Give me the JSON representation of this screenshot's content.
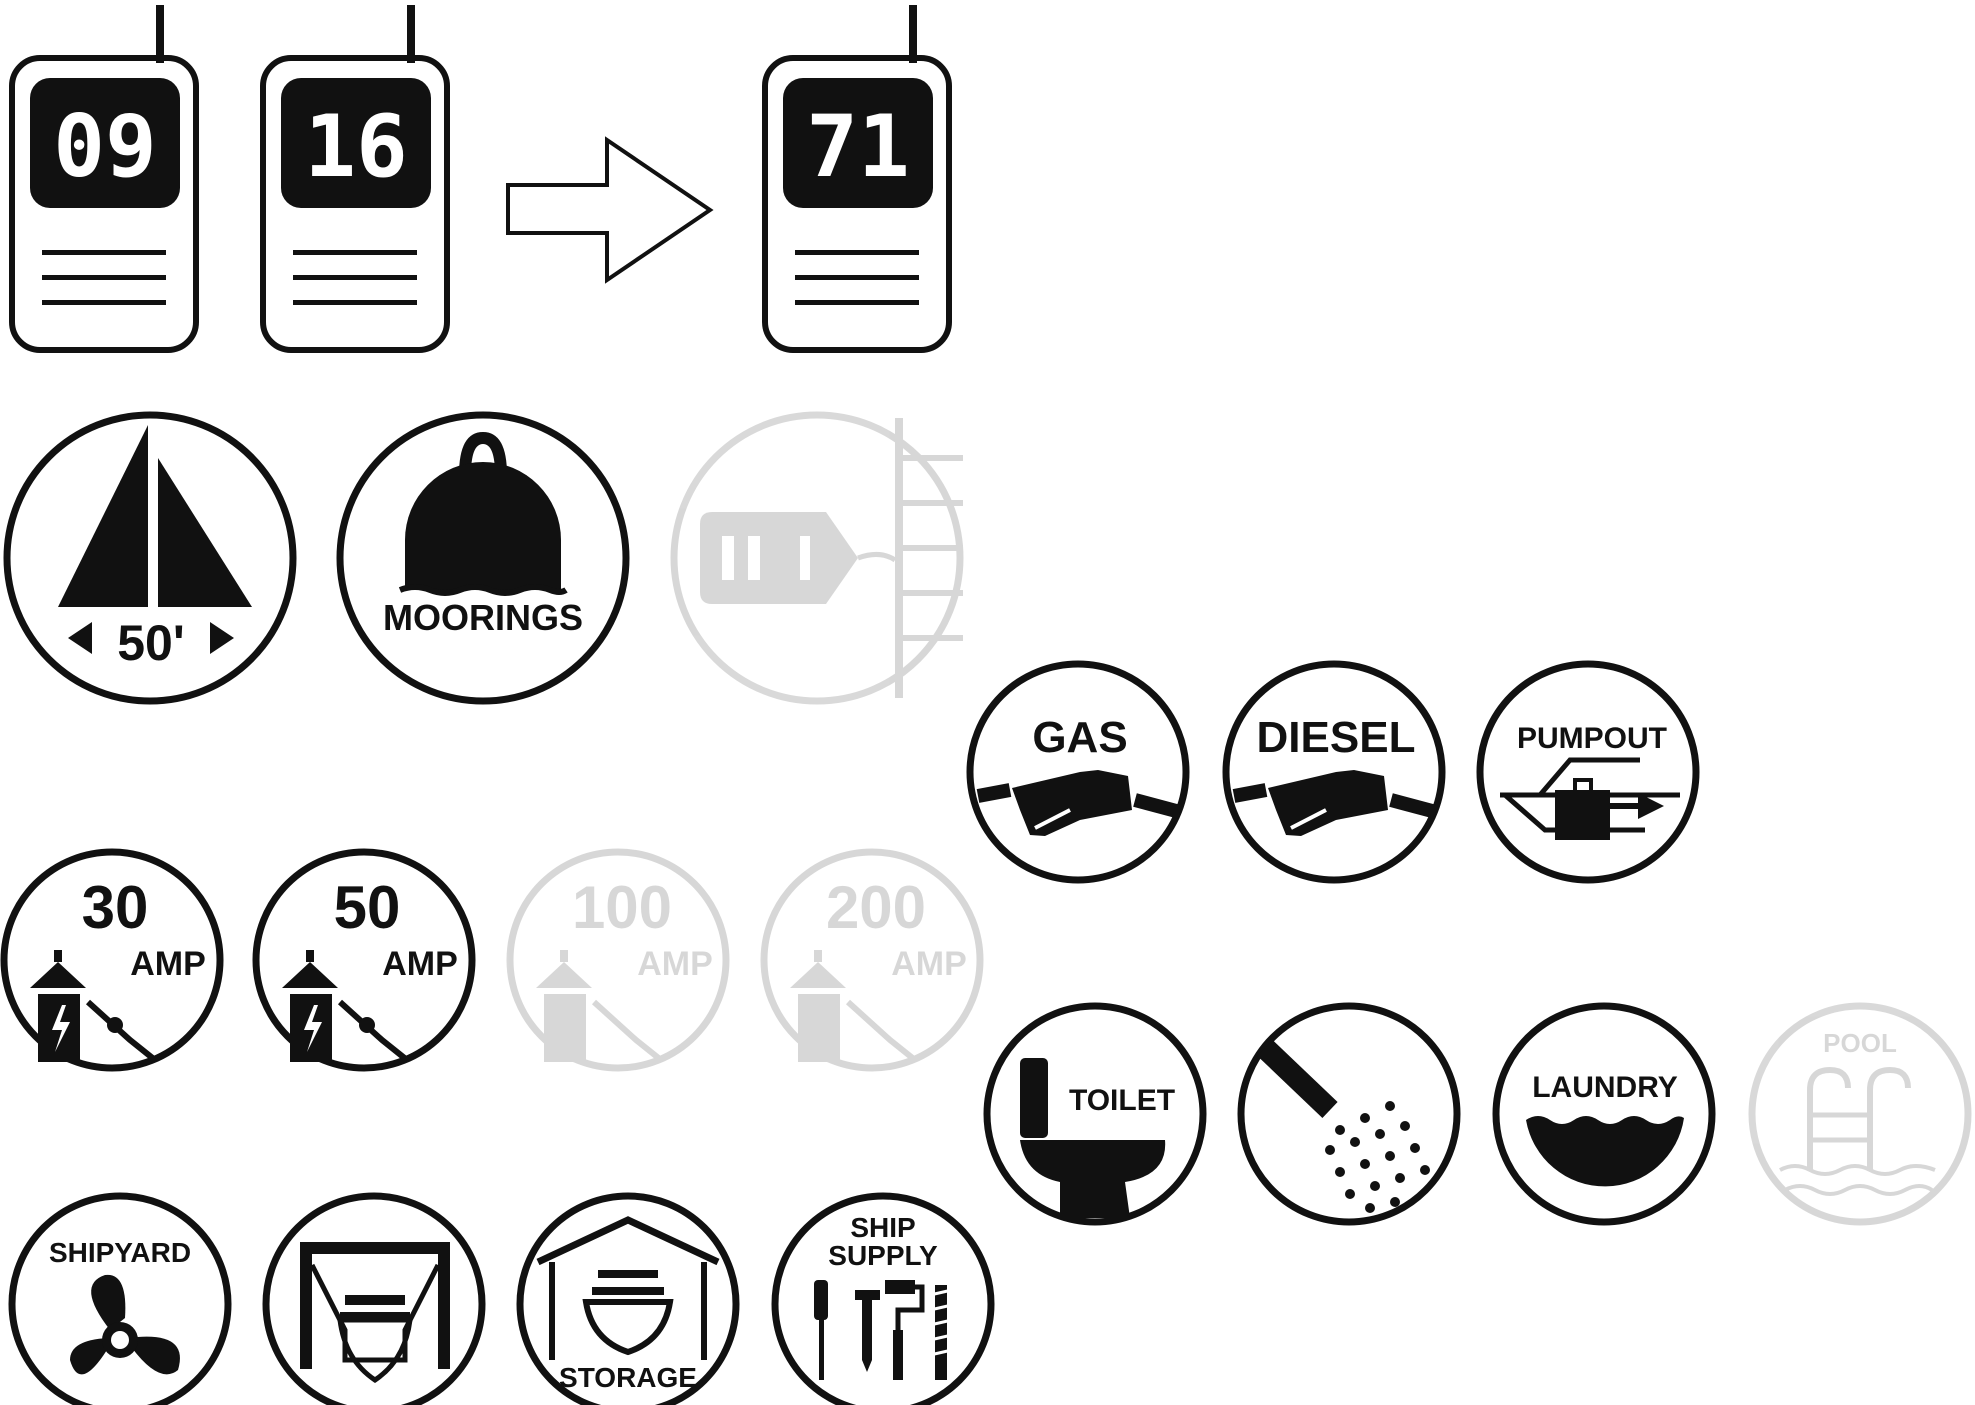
{
  "radios": {
    "channels": [
      "09",
      "16",
      "71"
    ]
  },
  "icons": {
    "boat_length": {
      "name": "sailboat-length",
      "label": "50'"
    },
    "moorings": {
      "name": "moorings",
      "label": "MOORINGS"
    },
    "dinghy_dock": {
      "name": "dinghy-dock",
      "label": ""
    },
    "gas": {
      "name": "gas",
      "label": "GAS"
    },
    "diesel": {
      "name": "diesel",
      "label": "DIESEL"
    },
    "pumpout": {
      "name": "pumpout",
      "label": "PUMPOUT"
    },
    "power_30": {
      "name": "shore-power-30",
      "amps": "30",
      "unit": "AMP"
    },
    "power_50": {
      "name": "shore-power-50",
      "amps": "50",
      "unit": "AMP"
    },
    "power_100": {
      "name": "shore-power-100",
      "amps": "100",
      "unit": "AMP"
    },
    "power_200": {
      "name": "shore-power-200",
      "amps": "200",
      "unit": "AMP"
    },
    "toilet": {
      "name": "toilet",
      "label": "TOILET"
    },
    "shower": {
      "name": "shower",
      "label": ""
    },
    "laundry": {
      "name": "laundry",
      "label": "LAUNDRY"
    },
    "pool": {
      "name": "pool",
      "label": "POOL"
    },
    "shipyard": {
      "name": "shipyard",
      "label": "SHIPYARD"
    },
    "travel_lift": {
      "name": "travel-lift",
      "label": ""
    },
    "storage": {
      "name": "storage",
      "label": "STORAGE"
    },
    "ship_supply": {
      "name": "ship-supply",
      "label_line1": "SHIP",
      "label_line2": "SUPPLY"
    }
  },
  "colors": {
    "ink": "#111111",
    "ghost_opacity": "0.16",
    "background": "#ffffff"
  }
}
